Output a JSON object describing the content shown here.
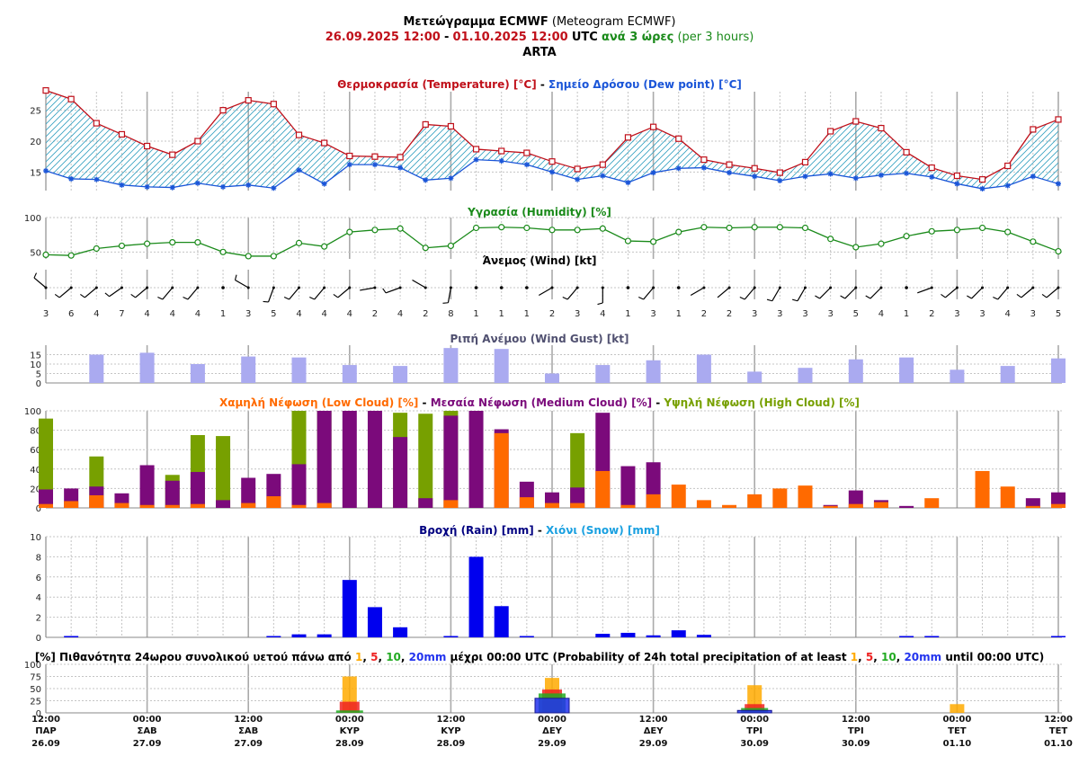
{
  "header": {
    "title_gr": "Μετεώγραμμα ECMWF",
    "title_en": "(Meteogram ECMWF)",
    "range_start": "26.09.2025 12:00",
    "range_sep": "-",
    "range_end": "01.10.2025 12:00",
    "tz": "UTC",
    "step_gr": "ανά 3 ώρες",
    "step_en": "(per 3 hours)",
    "location": "ARTA"
  },
  "colors": {
    "temperature": "#c0101a",
    "dew": "#1a55d8",
    "humidity": "#1a8a1a",
    "gust": "#aaaaf0",
    "low_cloud": "#ff6a00",
    "mid_cloud": "#7b0a7b",
    "high_cloud": "#77a000",
    "rain": "#0000ee",
    "snow": "#1aa0e0",
    "p1": "#ffaa00",
    "p5": "#ee2222",
    "p10": "#22aa22",
    "p20": "#2233ee"
  },
  "chart_data": [
    {
      "type": "line",
      "id": "temperature",
      "title_parts": [
        {
          "text": "Θερμοκρασία (Temperature) [°C]",
          "color": "#c0101a"
        },
        {
          "text": " - ",
          "color": "#000000"
        },
        {
          "text": "Σημείο Δρόσου (Dew point) [°C]",
          "color": "#1a55d8"
        }
      ],
      "ylim": [
        12,
        28
      ],
      "yticks": [
        15,
        20,
        25
      ],
      "series": [
        {
          "name": "Temperature",
          "values": [
            28.2,
            26.8,
            22.9,
            21.1,
            19.2,
            17.8,
            20,
            25,
            26.6,
            26,
            21,
            19.7,
            17.6,
            17.5,
            17.4,
            22.7,
            22.4,
            18.7,
            18.4,
            18.1,
            16.7,
            15.5,
            16.2,
            20.6,
            22.3,
            20.4,
            17,
            16.2,
            15.6,
            14.9,
            16.6,
            21.6,
            23.2,
            22.1,
            18.2,
            15.7,
            14.4,
            13.8,
            16,
            21.9,
            23.5
          ]
        },
        {
          "name": "Dew point",
          "values": [
            15.2,
            13.9,
            13.8,
            12.9,
            12.6,
            12.5,
            13.2,
            12.6,
            12.9,
            12.4,
            15.3,
            13.1,
            16.2,
            16.2,
            15.7,
            13.7,
            14,
            17,
            16.8,
            16.2,
            15,
            13.8,
            14.4,
            13.3,
            14.9,
            15.6,
            15.7,
            14.9,
            14.3,
            13.6,
            14.3,
            14.7,
            14,
            14.5,
            14.8,
            14.2,
            13.1,
            12.3,
            12.8,
            14.3,
            13.1
          ]
        }
      ]
    },
    {
      "type": "line",
      "id": "humidity",
      "title_parts": [
        {
          "text": "Υγρασία (Humidity) [%]",
          "color": "#1a8a1a"
        }
      ],
      "ylim": [
        40,
        100
      ],
      "yticks": [
        50,
        100
      ],
      "series": [
        {
          "name": "Humidity",
          "values": [
            46,
            45,
            55,
            59,
            62,
            64,
            64,
            50,
            44,
            44,
            63,
            58,
            79,
            82,
            84,
            56,
            59,
            85,
            86,
            85,
            82,
            82,
            84,
            66,
            65,
            79,
            86,
            85,
            86,
            86,
            85,
            69,
            57,
            62,
            73,
            80,
            82,
            85,
            79,
            65,
            51
          ]
        }
      ]
    },
    {
      "type": "scatter",
      "id": "wind",
      "title_parts": [
        {
          "text": "Άνεμος (Wind) [kt]",
          "color": "#000000"
        }
      ],
      "speeds": [
        3,
        6,
        4,
        7,
        4,
        4,
        4,
        1,
        3,
        5,
        4,
        4,
        4,
        2,
        4,
        2,
        8,
        1,
        1,
        1,
        2,
        3,
        4,
        1,
        3,
        1,
        2,
        2,
        3,
        3,
        3,
        3,
        5,
        4,
        1,
        2,
        3,
        3,
        4,
        3,
        5
      ],
      "directions_deg": [
        310,
        230,
        230,
        235,
        230,
        220,
        220,
        250,
        300,
        200,
        220,
        220,
        230,
        260,
        250,
        300,
        190,
        220,
        0,
        0,
        240,
        220,
        180,
        0,
        220,
        180,
        240,
        230,
        220,
        210,
        210,
        225,
        225,
        225,
        0,
        250,
        230,
        225,
        220,
        230,
        230
      ]
    },
    {
      "type": "bar",
      "id": "gust",
      "title_parts": [
        {
          "text": "Ριπή Ανέμου (Wind Gust) [kt]",
          "color": "#505070"
        }
      ],
      "ylim": [
        0,
        20
      ],
      "yticks": [
        0,
        5,
        10,
        15
      ],
      "x_index": [
        2,
        4,
        6,
        8,
        10,
        12,
        14,
        16,
        18,
        20,
        22,
        24,
        26,
        28,
        30,
        32,
        34,
        36,
        38,
        40
      ],
      "values": [
        15,
        16,
        10,
        14,
        13.5,
        9.5,
        9,
        18.5,
        18,
        5,
        9.5,
        12,
        15,
        6,
        8,
        12.5,
        13.5,
        7,
        9,
        13
      ]
    },
    {
      "type": "bar",
      "id": "clouds",
      "title_parts": [
        {
          "text": "Χαμηλή Νέφωση (Low Cloud) [%]",
          "color": "#ff6a00"
        },
        {
          "text": " - ",
          "color": "#000000"
        },
        {
          "text": "Μεσαία Νέφωση (Medium Cloud) [%]",
          "color": "#7b0a7b"
        },
        {
          "text": " - ",
          "color": "#000000"
        },
        {
          "text": "Υψηλή Νέφωση (High Cloud) [%]",
          "color": "#77a000"
        }
      ],
      "ylim": [
        0,
        100
      ],
      "yticks": [
        0,
        20,
        40,
        60,
        80,
        100
      ],
      "series": [
        {
          "name": "High Cloud",
          "values": [
            92,
            0,
            53,
            0,
            0,
            34,
            75,
            74,
            0,
            0,
            100,
            100,
            0,
            0,
            98,
            97,
            100,
            0,
            0,
            0,
            0,
            77,
            0,
            0,
            0,
            0,
            0,
            0,
            0,
            0,
            0,
            0,
            0,
            0,
            0,
            0,
            0,
            0,
            0,
            0,
            0
          ]
        },
        {
          "name": "Medium Cloud",
          "values": [
            19,
            20,
            22,
            15,
            44,
            28,
            37,
            8,
            31,
            35,
            45,
            100,
            100,
            100,
            73,
            10,
            95,
            100,
            81,
            27,
            16,
            21,
            98,
            43,
            47,
            0,
            0,
            0,
            0,
            0,
            0,
            3,
            18,
            8,
            2,
            0,
            0,
            0,
            0,
            10,
            16
          ]
        },
        {
          "name": "Low Cloud",
          "values": [
            4,
            7,
            13,
            5,
            3,
            3,
            4,
            0,
            5,
            12,
            3,
            5,
            0,
            0,
            0,
            0,
            8,
            0,
            77,
            11,
            5,
            5,
            38,
            3,
            14,
            24,
            8,
            3,
            14,
            20,
            23,
            2,
            4,
            6,
            0,
            10,
            0,
            38,
            22,
            2,
            4
          ]
        }
      ]
    },
    {
      "type": "bar",
      "id": "rain",
      "title_parts": [
        {
          "text": "Βροχή (Rain) [mm]",
          "color": "#000080"
        },
        {
          "text": " - ",
          "color": "#000000"
        },
        {
          "text": "Χιόνι (Snow) [mm]",
          "color": "#1aa0e0"
        }
      ],
      "ylim": [
        0,
        10
      ],
      "yticks": [
        0,
        2,
        4,
        6,
        8,
        10
      ],
      "series": [
        {
          "name": "Rain",
          "values": [
            0,
            0.1,
            0,
            0,
            0,
            0,
            0,
            0,
            0,
            0.1,
            0.3,
            0.3,
            5.7,
            3,
            1,
            0,
            0.1,
            8,
            3.1,
            0.1,
            0,
            0,
            0.35,
            0.45,
            0.2,
            0.7,
            0.25,
            0,
            0,
            0,
            0,
            0,
            0,
            0,
            0.1,
            0.1,
            0,
            0,
            0,
            0,
            0.1
          ]
        }
      ]
    },
    {
      "type": "bar",
      "id": "probability",
      "title_parts": [
        {
          "text": "[%] Πιθανότητα 24ωρου συνολικού υετού πάνω από ",
          "color": "#000000",
          "bold": true
        },
        {
          "text": "1",
          "color": "#ffaa00",
          "bold": true
        },
        {
          "text": ", ",
          "color": "#000000",
          "bold": true
        },
        {
          "text": "5",
          "color": "#ee2222",
          "bold": true
        },
        {
          "text": ", ",
          "color": "#000000",
          "bold": true
        },
        {
          "text": "10",
          "color": "#22aa22",
          "bold": true
        },
        {
          "text": ", ",
          "color": "#000000",
          "bold": true
        },
        {
          "text": "20mm",
          "color": "#2233ee",
          "bold": true
        },
        {
          "text": " μέχρι 00:00 UTC",
          "color": "#000000",
          "bold": true
        },
        {
          "text": " (Probability of 24h total precipitation of at least ",
          "color": "#000000"
        },
        {
          "text": "1",
          "color": "#ffaa00"
        },
        {
          "text": ", ",
          "color": "#000000"
        },
        {
          "text": "5",
          "color": "#ee2222"
        },
        {
          "text": ", ",
          "color": "#000000"
        },
        {
          "text": "10",
          "color": "#22aa22"
        },
        {
          "text": ", ",
          "color": "#000000"
        },
        {
          "text": "20mm",
          "color": "#2233ee"
        },
        {
          "text": " until 00:00 UTC)",
          "color": "#000000"
        }
      ],
      "ylim": [
        0,
        100
      ],
      "yticks": [
        0,
        25,
        50,
        75,
        100
      ],
      "x_index": [
        12,
        20,
        28,
        36
      ],
      "series": [
        {
          "name": "1",
          "values": [
            75,
            72,
            57,
            18
          ]
        },
        {
          "name": "5",
          "values": [
            23,
            48,
            18,
            0
          ]
        },
        {
          "name": "10",
          "values": [
            5,
            40,
            10,
            0
          ]
        },
        {
          "name": "20mm",
          "values": [
            0,
            30,
            5,
            0
          ]
        }
      ]
    }
  ],
  "x_axis": {
    "labels": [
      {
        "time": "12:00",
        "day": "ΠΑΡ",
        "date": "26.09"
      },
      {
        "time": "00:00",
        "day": "ΣΑΒ",
        "date": "27.09"
      },
      {
        "time": "12:00",
        "day": "ΣΑΒ",
        "date": "27.09"
      },
      {
        "time": "00:00",
        "day": "ΚΥΡ",
        "date": "28.09"
      },
      {
        "time": "12:00",
        "day": "ΚΥΡ",
        "date": "28.09"
      },
      {
        "time": "00:00",
        "day": "ΔΕΥ",
        "date": "29.09"
      },
      {
        "time": "12:00",
        "day": "ΔΕΥ",
        "date": "29.09"
      },
      {
        "time": "00:00",
        "day": "ΤΡΙ",
        "date": "30.09"
      },
      {
        "time": "12:00",
        "day": "ΤΡΙ",
        "date": "30.09"
      },
      {
        "time": "00:00",
        "day": "ΤΕΤ",
        "date": "01.10"
      },
      {
        "time": "12:00",
        "day": "ΤΕΤ",
        "date": "01.10"
      }
    ]
  }
}
